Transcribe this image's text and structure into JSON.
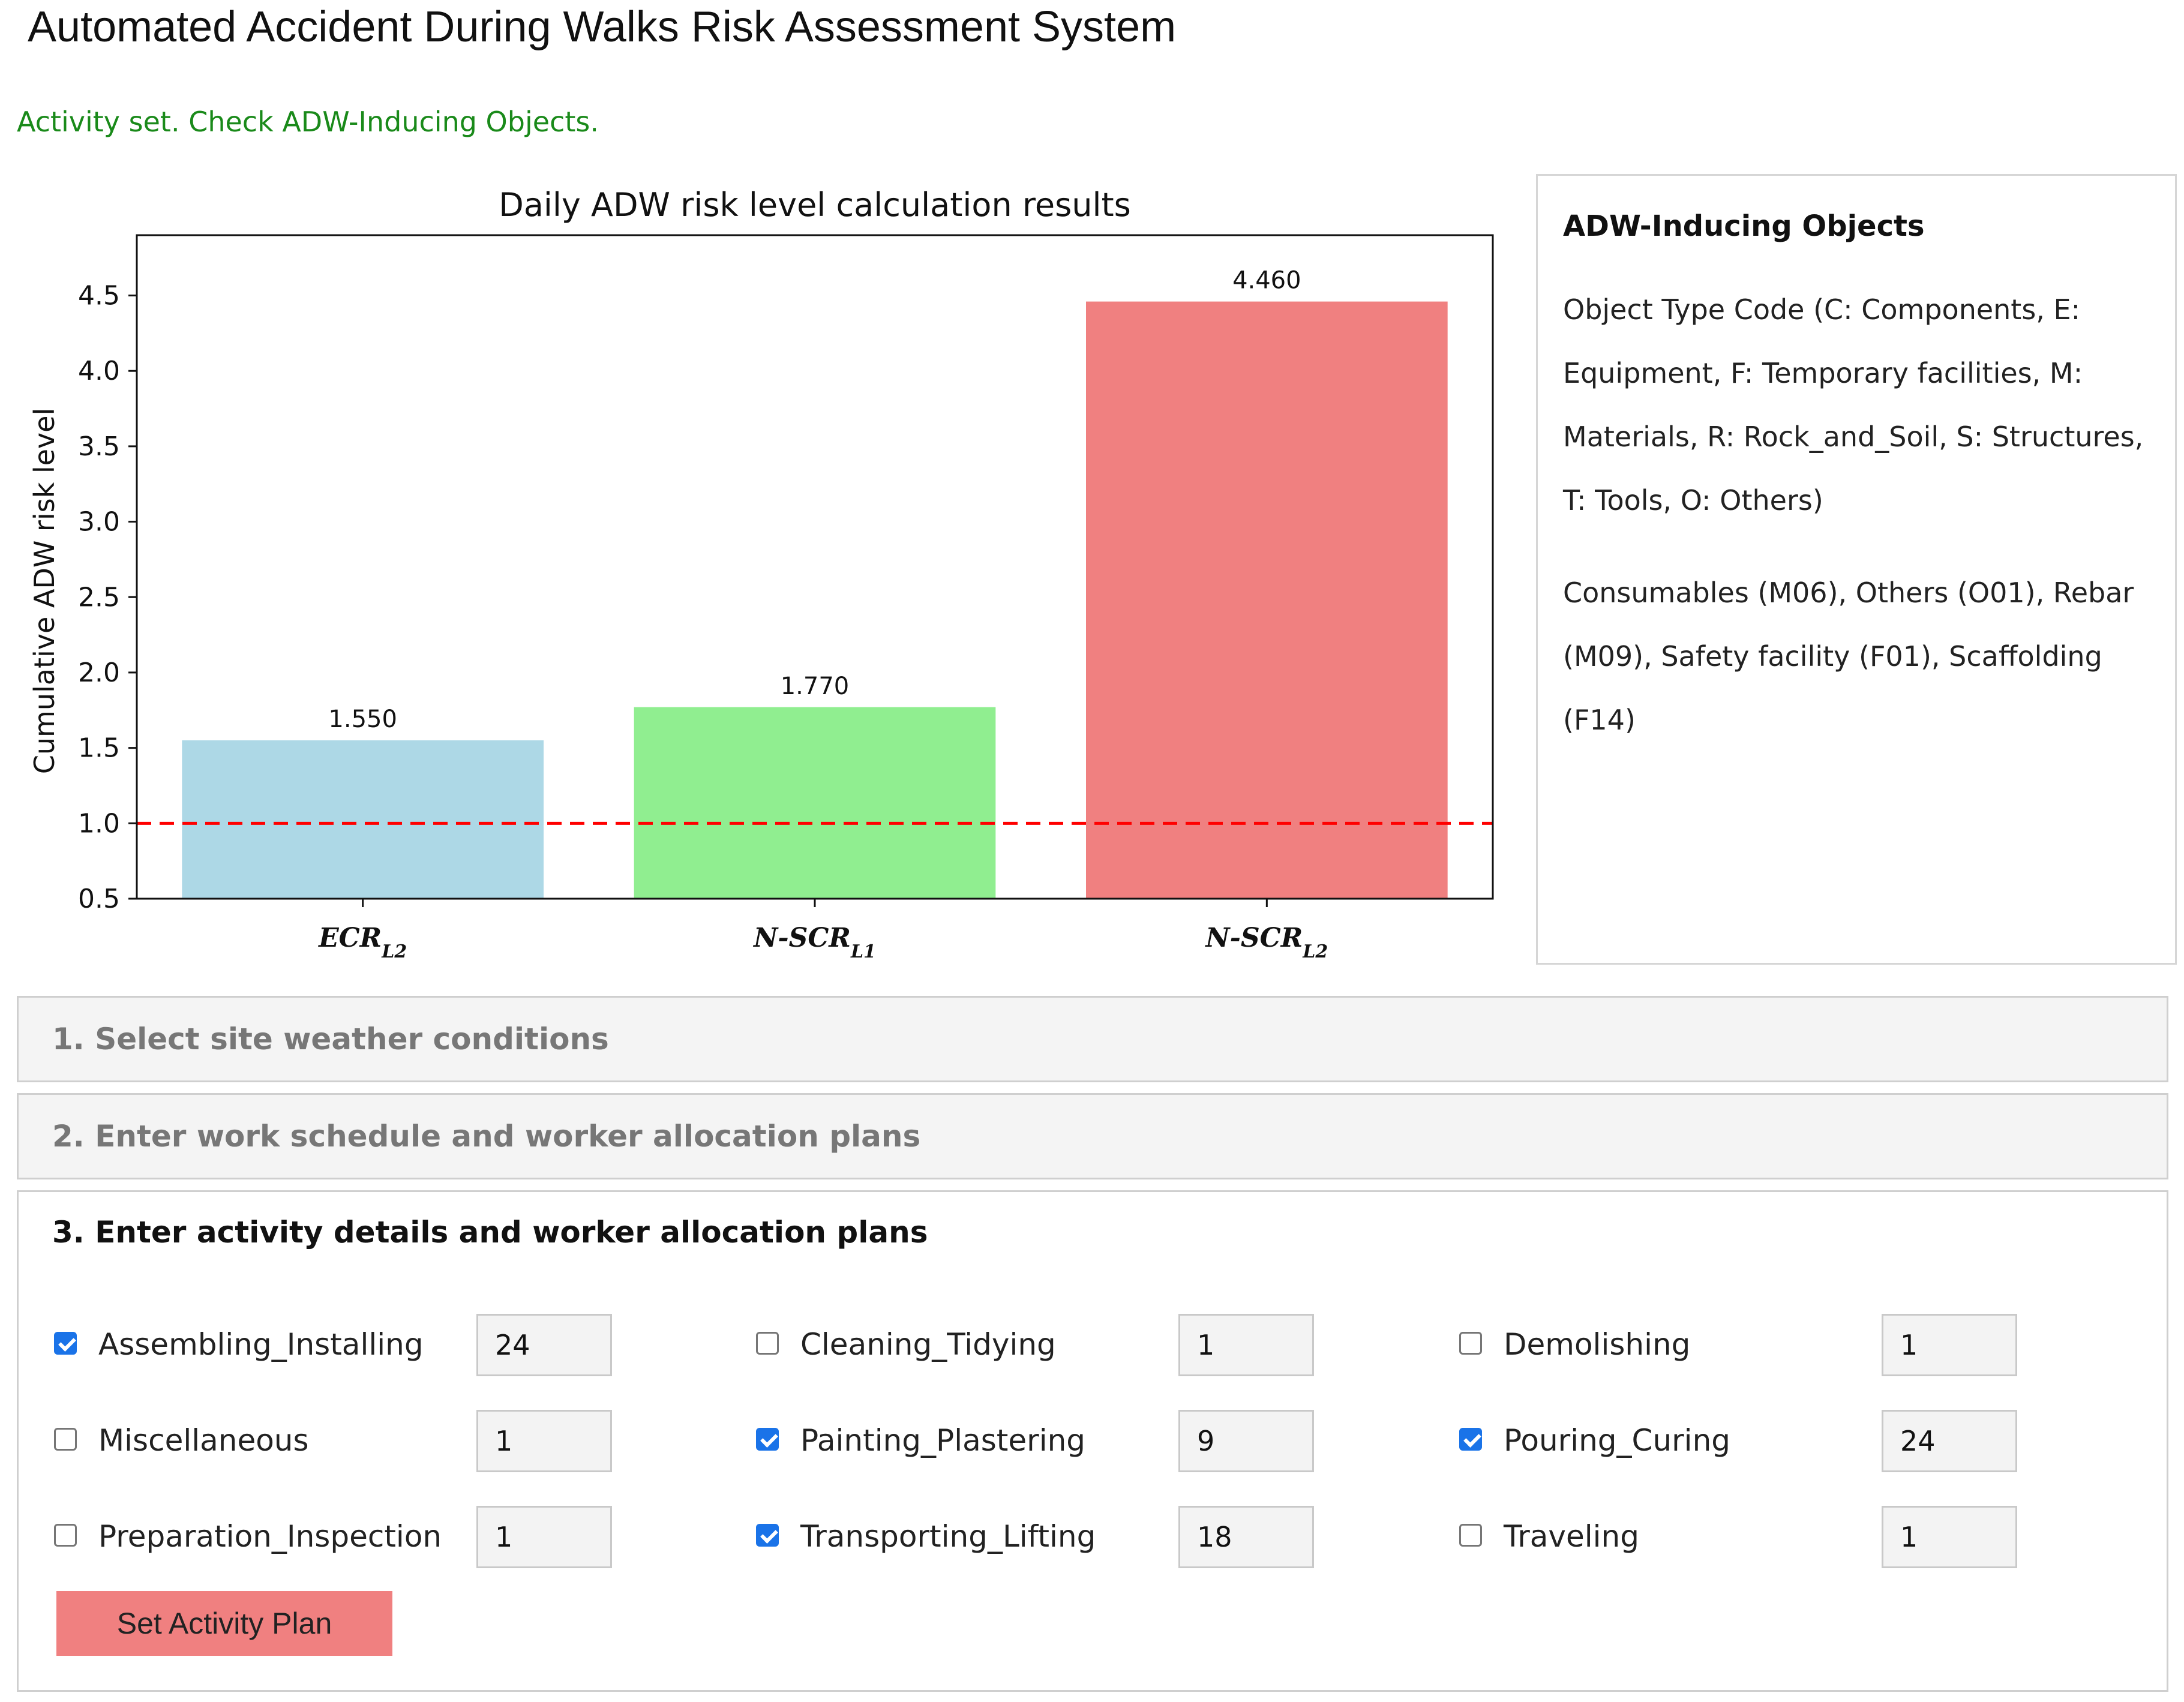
{
  "app_title": "Automated Accident During Walks Risk Assessment System",
  "status_message": "Activity set. Check ADW-Inducing Objects.",
  "chart_data": {
    "type": "bar",
    "title": "Daily ADW risk level calculation results",
    "xlabel": "",
    "ylabel": "Cumulative ADW risk level",
    "categories": [
      "ECR",
      "N-SCR",
      "N-SCR"
    ],
    "category_subscripts": [
      "L2",
      "L1",
      "L2"
    ],
    "values": [
      1.55,
      1.77,
      4.46
    ],
    "value_labels": [
      "1.550",
      "1.770",
      "4.460"
    ],
    "bar_colors": [
      "#add8e6",
      "#90ee90",
      "#f08080"
    ],
    "ylim": [
      0.5,
      4.9
    ],
    "yticks": [
      0.5,
      1.0,
      1.5,
      2.0,
      2.5,
      3.0,
      3.5,
      4.0,
      4.5
    ],
    "ytick_labels": [
      "0.5",
      "1.0",
      "1.5",
      "2.0",
      "2.5",
      "3.0",
      "3.5",
      "4.0",
      "4.5"
    ],
    "threshold": 1.0,
    "threshold_color": "#ff0000",
    "grid": false
  },
  "side_panel": {
    "title": "ADW-Inducing Objects",
    "legend_text": "Object Type Code (C: Components, E: Equipment, F: Temporary facilities, M: Materials, R: Rock_and_Soil, S: Structures, T: Tools, O: Others)",
    "objects_text": "Consumables (M06), Others (O01), Rebar (M09), Safety facility (F01), Scaffolding (F14)"
  },
  "sections": {
    "weather": "1. Select site weather conditions",
    "schedule": "2. Enter work schedule and worker allocation plans",
    "activity": "3. Enter activity details and worker allocation plans"
  },
  "activities": [
    {
      "label": "Assembling_Installing",
      "checked": true,
      "value": "24"
    },
    {
      "label": "Cleaning_Tidying",
      "checked": false,
      "value": "1"
    },
    {
      "label": "Demolishing",
      "checked": false,
      "value": "1"
    },
    {
      "label": "Miscellaneous",
      "checked": false,
      "value": "1"
    },
    {
      "label": "Painting_Plastering",
      "checked": true,
      "value": "9"
    },
    {
      "label": "Pouring_Curing",
      "checked": true,
      "value": "24"
    },
    {
      "label": "Preparation_Inspection",
      "checked": false,
      "value": "1"
    },
    {
      "label": "Transporting_Lifting",
      "checked": true,
      "value": "18"
    },
    {
      "label": "Traveling",
      "checked": false,
      "value": "1"
    }
  ],
  "set_button_label": "Set Activity Plan",
  "colors": {
    "status_green": "#1a8a1a",
    "checkbox_blue": "#1a73e8",
    "button_bg": "#f08080"
  }
}
